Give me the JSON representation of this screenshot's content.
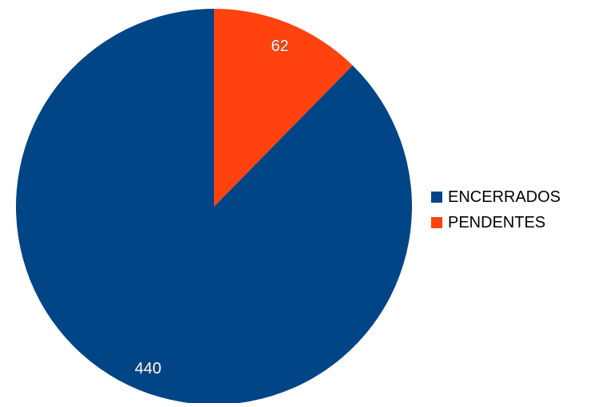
{
  "chart_data": {
    "type": "pie",
    "categories": [
      "ENCERRADOS",
      "PENDENTES"
    ],
    "values": [
      440,
      62
    ],
    "colors": [
      "#004586",
      "#ff420e"
    ],
    "data_labels": [
      "440",
      "62"
    ],
    "start_angle": "12 o'clock",
    "direction": "clockwise",
    "slice_order": [
      "PENDENTES",
      "ENCERRADOS"
    ],
    "legend": {
      "placement": "right",
      "items": [
        {
          "label": "ENCERRADOS",
          "color": "#004586"
        },
        {
          "label": "PENDENTES",
          "color": "#ff420e"
        }
      ]
    }
  }
}
